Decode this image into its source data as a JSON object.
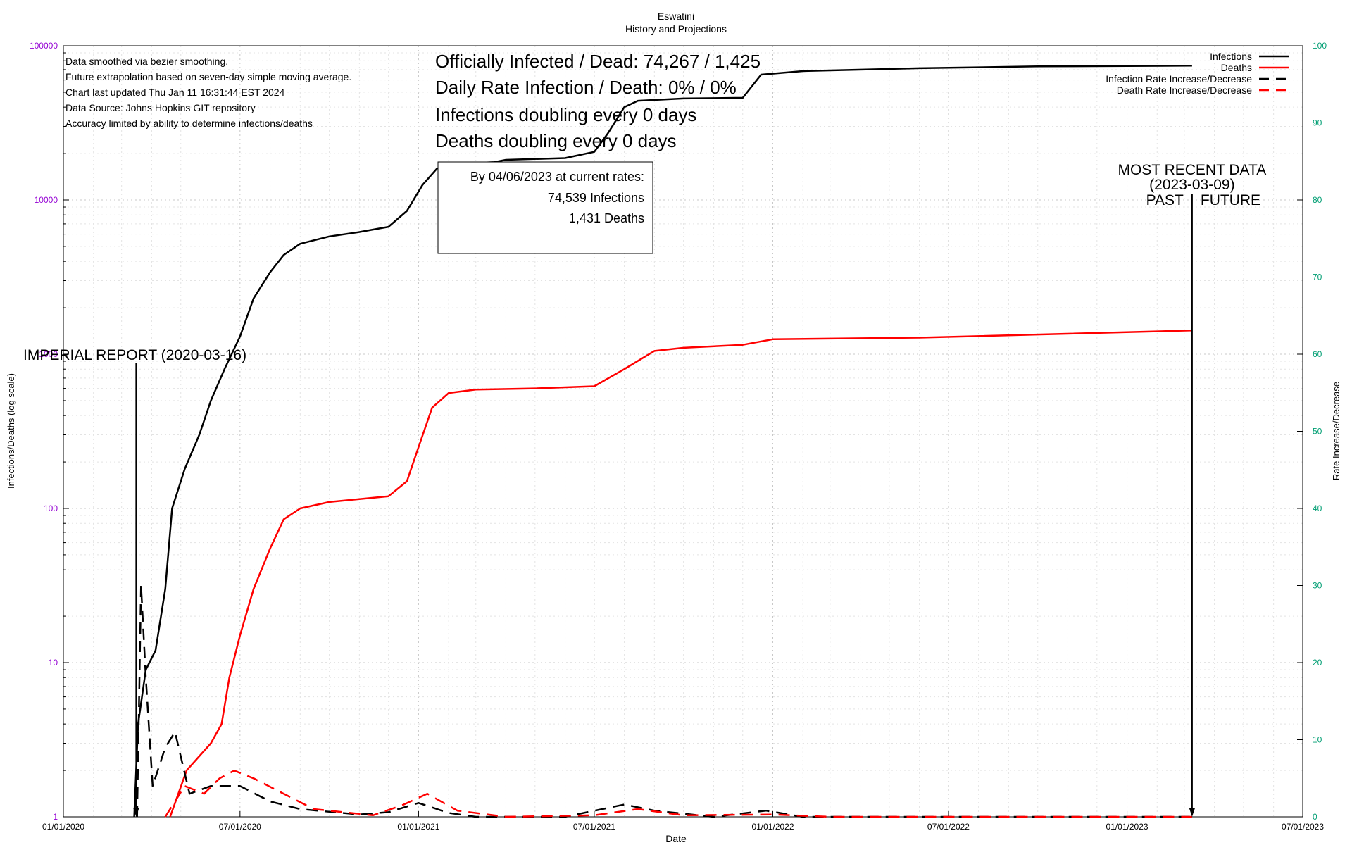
{
  "chart_data": {
    "type": "line",
    "title": "Eswatini",
    "subtitle": "History and Projections",
    "xlabel": "Date",
    "ylabel": "Infections/Deaths (log scale)",
    "y2label": "Rate Increase/Decrease",
    "x_ticks": [
      "01/01/2020",
      "07/01/2020",
      "01/01/2021",
      "07/01/2021",
      "01/01/2022",
      "07/01/2022",
      "01/01/2023",
      "07/01/2023"
    ],
    "y_ticks": [
      "1",
      "10",
      "100",
      "1000",
      "10000",
      "100000"
    ],
    "y2_ticks": [
      "0",
      "10",
      "20",
      "30",
      "40",
      "50",
      "60",
      "70",
      "80",
      "90",
      "100"
    ],
    "xlim": [
      "2020-01-01",
      "2023-07-01"
    ],
    "ylim": [
      1,
      100000
    ],
    "y_scale": "log",
    "y2lim": [
      0,
      100
    ],
    "grid": true,
    "legend_position": "top-right",
    "colors": {
      "infections": "#000000",
      "deaths": "#ff0000",
      "left_axis_ticks": "#9400d3",
      "right_axis_ticks": "#009e73"
    },
    "series": [
      {
        "name": "Infections",
        "style": "solid",
        "axis": "left",
        "color": "#000000",
        "points": [
          [
            "2020-03-14",
            1
          ],
          [
            "2020-03-18",
            4
          ],
          [
            "2020-03-26",
            9
          ],
          [
            "2020-04-05",
            12
          ],
          [
            "2020-04-15",
            30
          ],
          [
            "2020-04-22",
            100
          ],
          [
            "2020-05-05",
            180
          ],
          [
            "2020-05-20",
            300
          ],
          [
            "2020-06-01",
            500
          ],
          [
            "2020-06-15",
            800
          ],
          [
            "2020-07-01",
            1300
          ],
          [
            "2020-07-15",
            2300
          ],
          [
            "2020-08-01",
            3400
          ],
          [
            "2020-08-15",
            4400
          ],
          [
            "2020-09-01",
            5200
          ],
          [
            "2020-10-01",
            5800
          ],
          [
            "2020-11-01",
            6200
          ],
          [
            "2020-12-01",
            6700
          ],
          [
            "2020-12-20",
            8500
          ],
          [
            "2021-01-05",
            12500
          ],
          [
            "2021-01-20",
            16000
          ],
          [
            "2021-02-15",
            17200
          ],
          [
            "2021-03-20",
            17600
          ],
          [
            "2021-04-01",
            18200
          ],
          [
            "2021-06-01",
            18700
          ],
          [
            "2021-07-01",
            20500
          ],
          [
            "2021-07-15",
            27000
          ],
          [
            "2021-08-01",
            40000
          ],
          [
            "2021-08-15",
            44000
          ],
          [
            "2021-10-01",
            45500
          ],
          [
            "2021-12-01",
            46000
          ],
          [
            "2021-12-20",
            65000
          ],
          [
            "2022-02-01",
            68500
          ],
          [
            "2022-06-01",
            71500
          ],
          [
            "2022-10-01",
            73500
          ],
          [
            "2023-03-09",
            74267
          ]
        ]
      },
      {
        "name": "Deaths",
        "style": "solid",
        "axis": "left",
        "color": "#ff0000",
        "points": [
          [
            "2020-04-20",
            1
          ],
          [
            "2020-05-07",
            2
          ],
          [
            "2020-06-01",
            3
          ],
          [
            "2020-06-12",
            4
          ],
          [
            "2020-06-20",
            8
          ],
          [
            "2020-07-01",
            15
          ],
          [
            "2020-07-15",
            30
          ],
          [
            "2020-08-01",
            55
          ],
          [
            "2020-08-15",
            85
          ],
          [
            "2020-09-01",
            100
          ],
          [
            "2020-10-01",
            110
          ],
          [
            "2020-11-01",
            115
          ],
          [
            "2020-12-01",
            120
          ],
          [
            "2020-12-20",
            150
          ],
          [
            "2021-01-01",
            250
          ],
          [
            "2021-01-15",
            450
          ],
          [
            "2021-02-01",
            560
          ],
          [
            "2021-03-01",
            590
          ],
          [
            "2021-05-01",
            600
          ],
          [
            "2021-07-01",
            620
          ],
          [
            "2021-08-01",
            800
          ],
          [
            "2021-09-01",
            1050
          ],
          [
            "2021-10-01",
            1100
          ],
          [
            "2021-12-01",
            1150
          ],
          [
            "2022-01-01",
            1250
          ],
          [
            "2022-06-01",
            1280
          ],
          [
            "2023-03-09",
            1425
          ]
        ]
      },
      {
        "name": "Infection Rate Increase/Decrease",
        "style": "dashed",
        "axis": "right",
        "color": "#000000",
        "points": [
          [
            "2020-03-17",
            0
          ],
          [
            "2020-03-21",
            30
          ],
          [
            "2020-03-26",
            18
          ],
          [
            "2020-04-02",
            4
          ],
          [
            "2020-04-15",
            9
          ],
          [
            "2020-04-25",
            11
          ],
          [
            "2020-05-10",
            3
          ],
          [
            "2020-06-01",
            4
          ],
          [
            "2020-07-01",
            4
          ],
          [
            "2020-08-01",
            2
          ],
          [
            "2020-09-01",
            1
          ],
          [
            "2020-11-01",
            0.3
          ],
          [
            "2020-12-01",
            0.6
          ],
          [
            "2021-01-01",
            1.8
          ],
          [
            "2021-02-01",
            0.5
          ],
          [
            "2021-03-01",
            0
          ],
          [
            "2021-06-01",
            0
          ],
          [
            "2021-08-01",
            1.6
          ],
          [
            "2021-09-01",
            0.8
          ],
          [
            "2021-11-01",
            0
          ],
          [
            "2021-12-25",
            0.8
          ],
          [
            "2022-02-01",
            0
          ],
          [
            "2023-03-09",
            0
          ]
        ]
      },
      {
        "name": "Death Rate Increase/Decrease",
        "style": "dashed",
        "axis": "right",
        "color": "#ff0000",
        "points": [
          [
            "2020-04-15",
            0
          ],
          [
            "2020-04-25",
            2
          ],
          [
            "2020-05-05",
            4
          ],
          [
            "2020-05-25",
            3
          ],
          [
            "2020-06-10",
            5
          ],
          [
            "2020-06-25",
            6
          ],
          [
            "2020-07-15",
            5
          ],
          [
            "2020-08-15",
            3
          ],
          [
            "2020-09-15",
            1
          ],
          [
            "2020-11-15",
            0.2
          ],
          [
            "2020-12-15",
            1.5
          ],
          [
            "2021-01-10",
            3
          ],
          [
            "2021-02-10",
            0.8
          ],
          [
            "2021-04-01",
            0
          ],
          [
            "2021-07-01",
            0.2
          ],
          [
            "2021-08-15",
            1
          ],
          [
            "2021-10-01",
            0.2
          ],
          [
            "2022-01-01",
            0.3
          ],
          [
            "2022-03-01",
            0
          ],
          [
            "2023-03-09",
            0
          ]
        ]
      }
    ],
    "annotations": {
      "notes": [
        "Data smoothed via bezier smoothing.",
        "Future extrapolation based on seven-day simple moving average.",
        "Chart last updated Thu Jan 11 16:31:44 EST 2024",
        "Data Source: Johns Hopkins GIT repository",
        "Accuracy limited by ability to determine infections/deaths"
      ],
      "headline_infected_dead": "Officially Infected / Dead:  74,267 / 1,425",
      "headline_daily_rate": "Daily Rate Infection / Death:  0% / 0%",
      "headline_infections_doubling": "Infections doubling every 0 days",
      "headline_deaths_doubling": "Deaths doubling every 0 days",
      "projection_box": {
        "line1": "By 04/06/2023 at current rates:",
        "line2": "74,539 Infections",
        "line3": "1,431 Deaths"
      },
      "imperial_report": {
        "label": "IMPERIAL REPORT (2020-03-16)",
        "date": "2020-03-16"
      },
      "most_recent": {
        "line1": "MOST RECENT DATA",
        "line2": "(2023-03-09)",
        "past": "PAST",
        "future": "FUTURE",
        "date": "2023-03-09"
      }
    }
  }
}
